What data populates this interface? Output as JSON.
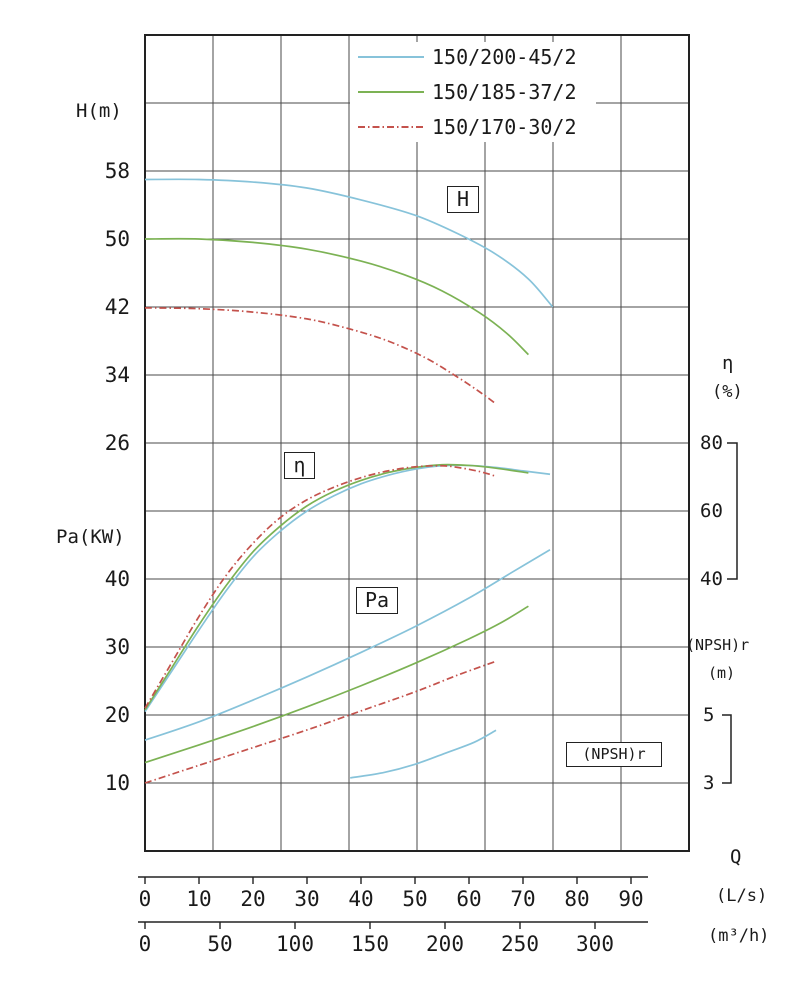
{
  "labels": {
    "h_axis": "H(m)",
    "pa_axis": "Pa(KW)",
    "eta_sym": "η",
    "eta_unit": "(%)",
    "npsh_name": "(NPSH)r",
    "npsh_unit": "(m)",
    "q": "Q",
    "q_unit_ls": "(L/s)",
    "q_unit_m3h": "(m³/h)"
  },
  "chart_data": {
    "type": "line",
    "title": "",
    "legend_position": "top-center",
    "grid": "on",
    "legend": [
      {
        "label": "150/200-45/2",
        "color": "#87c3da",
        "dash": "solid"
      },
      {
        "label": "150/185-37/2",
        "color": "#7cb254",
        "dash": "solid"
      },
      {
        "label": "150/170-30/2",
        "color": "#c4524c",
        "dash": "dash-dot"
      }
    ],
    "curve_labels": {
      "H": "H",
      "eta": "η",
      "pa": "Pa",
      "npsh": "(NPSH)r"
    },
    "axes": {
      "x_ls": {
        "label": "Q (L/s)",
        "ticks": [
          0,
          10,
          20,
          30,
          40,
          50,
          60,
          70,
          80,
          90
        ]
      },
      "x_m3h": {
        "label": "Q (m³/h)",
        "ticks": [
          0,
          50,
          100,
          150,
          200,
          250,
          300
        ]
      },
      "H": {
        "label": "H(m)",
        "ticks": [
          58,
          50,
          42,
          34,
          26
        ]
      },
      "Pa": {
        "label": "Pa(KW)",
        "ticks": [
          40,
          30,
          20,
          10
        ]
      },
      "eta": {
        "label": "η (%)",
        "ticks": [
          80,
          60,
          40
        ]
      },
      "npsh": {
        "label": "(NPSH)r (m)",
        "ticks": [
          5,
          3
        ]
      }
    },
    "series": [
      {
        "id": "h-150-200",
        "model": "150/200-45/2",
        "group": "H",
        "scale": "H",
        "color": "#87c3da",
        "dash": "solid",
        "points": [
          [
            0,
            57
          ],
          [
            10,
            57
          ],
          [
            20,
            56.7
          ],
          [
            30,
            56
          ],
          [
            40,
            54.6
          ],
          [
            50,
            52.8
          ],
          [
            58,
            50.6
          ],
          [
            65,
            48.2
          ],
          [
            71,
            45.3
          ],
          [
            75.5,
            42
          ]
        ]
      },
      {
        "id": "h-150-185",
        "model": "150/185-37/2",
        "group": "H",
        "scale": "H",
        "color": "#7cb254",
        "dash": "solid",
        "points": [
          [
            0,
            50
          ],
          [
            10,
            50
          ],
          [
            20,
            49.6
          ],
          [
            30,
            48.8
          ],
          [
            40,
            47.4
          ],
          [
            48,
            45.8
          ],
          [
            55,
            43.9
          ],
          [
            62,
            41.3
          ],
          [
            67,
            38.9
          ],
          [
            71,
            36.4
          ]
        ]
      },
      {
        "id": "h-150-170",
        "model": "150/170-30/2",
        "group": "H",
        "scale": "H",
        "color": "#c4524c",
        "dash": "dash-dot",
        "points": [
          [
            0,
            41.9
          ],
          [
            10,
            41.8
          ],
          [
            20,
            41.4
          ],
          [
            30,
            40.6
          ],
          [
            38,
            39.4
          ],
          [
            45,
            38
          ],
          [
            52,
            36
          ],
          [
            58,
            33.7
          ],
          [
            62,
            32
          ],
          [
            65,
            30.6
          ]
        ]
      },
      {
        "id": "eta-150-200",
        "model": "150/200-45/2",
        "group": "eta",
        "scale": "eta",
        "color": "#87c3da",
        "dash": "solid",
        "points": [
          [
            0,
            1
          ],
          [
            5,
            13
          ],
          [
            10,
            25
          ],
          [
            15,
            36.5
          ],
          [
            20,
            46.5
          ],
          [
            25,
            54
          ],
          [
            30,
            60
          ],
          [
            35,
            64.5
          ],
          [
            40,
            68
          ],
          [
            45,
            70.5
          ],
          [
            50,
            72.3
          ],
          [
            55,
            73.3
          ],
          [
            60,
            73.4
          ],
          [
            65,
            72.8
          ],
          [
            70,
            71.8
          ],
          [
            75,
            70.8
          ]
        ]
      },
      {
        "id": "eta-150-185",
        "model": "150/185-37/2",
        "group": "eta",
        "scale": "eta",
        "color": "#7cb254",
        "dash": "solid",
        "points": [
          [
            0,
            1.5
          ],
          [
            5,
            14
          ],
          [
            10,
            26.5
          ],
          [
            15,
            38
          ],
          [
            20,
            48
          ],
          [
            25,
            55.5
          ],
          [
            30,
            61.5
          ],
          [
            35,
            65.8
          ],
          [
            40,
            69
          ],
          [
            45,
            71.3
          ],
          [
            50,
            72.8
          ],
          [
            55,
            73.6
          ],
          [
            60,
            73.4
          ],
          [
            65,
            72.6
          ],
          [
            71,
            71.2
          ]
        ]
      },
      {
        "id": "eta-150-170",
        "model": "150/170-30/2",
        "group": "eta",
        "scale": "eta",
        "color": "#c4524c",
        "dash": "dash-dot",
        "points": [
          [
            0,
            2
          ],
          [
            5,
            15.5
          ],
          [
            10,
            29
          ],
          [
            15,
            41
          ],
          [
            20,
            50.5
          ],
          [
            25,
            58
          ],
          [
            30,
            63.3
          ],
          [
            35,
            67
          ],
          [
            40,
            69.8
          ],
          [
            45,
            71.8
          ],
          [
            50,
            73
          ],
          [
            55,
            73.3
          ],
          [
            58,
            72.8
          ],
          [
            62,
            71.6
          ],
          [
            65,
            70.2
          ]
        ]
      },
      {
        "id": "pa-150-200",
        "model": "150/200-45/2",
        "group": "Pa",
        "scale": "Pa",
        "color": "#87c3da",
        "dash": "solid",
        "points": [
          [
            0,
            16.3
          ],
          [
            10,
            19
          ],
          [
            20,
            22.2
          ],
          [
            30,
            25.6
          ],
          [
            40,
            29.2
          ],
          [
            50,
            33
          ],
          [
            60,
            37.2
          ],
          [
            68,
            41
          ],
          [
            75,
            44.3
          ]
        ]
      },
      {
        "id": "pa-150-185",
        "model": "150/185-37/2",
        "group": "Pa",
        "scale": "Pa",
        "color": "#7cb254",
        "dash": "solid",
        "points": [
          [
            0,
            13
          ],
          [
            10,
            15.6
          ],
          [
            20,
            18.3
          ],
          [
            30,
            21.2
          ],
          [
            40,
            24.3
          ],
          [
            50,
            27.6
          ],
          [
            60,
            31.2
          ],
          [
            66,
            33.6
          ],
          [
            71,
            36
          ]
        ]
      },
      {
        "id": "pa-150-170",
        "model": "150/170-30/2",
        "group": "Pa",
        "scale": "Pa",
        "color": "#c4524c",
        "dash": "dash-dot",
        "points": [
          [
            0,
            10
          ],
          [
            10,
            12.6
          ],
          [
            20,
            15.2
          ],
          [
            30,
            17.8
          ],
          [
            40,
            20.6
          ],
          [
            50,
            23.4
          ],
          [
            58,
            25.9
          ],
          [
            65,
            27.9
          ]
        ]
      },
      {
        "id": "npsh-150-200",
        "model": "150/200-45/2",
        "group": "npsh",
        "scale": "npsh",
        "color": "#87c3da",
        "dash": "solid",
        "points": [
          [
            38,
            3.15
          ],
          [
            44,
            3.3
          ],
          [
            50,
            3.55
          ],
          [
            56,
            3.9
          ],
          [
            61,
            4.2
          ],
          [
            65,
            4.55
          ]
        ]
      }
    ]
  }
}
